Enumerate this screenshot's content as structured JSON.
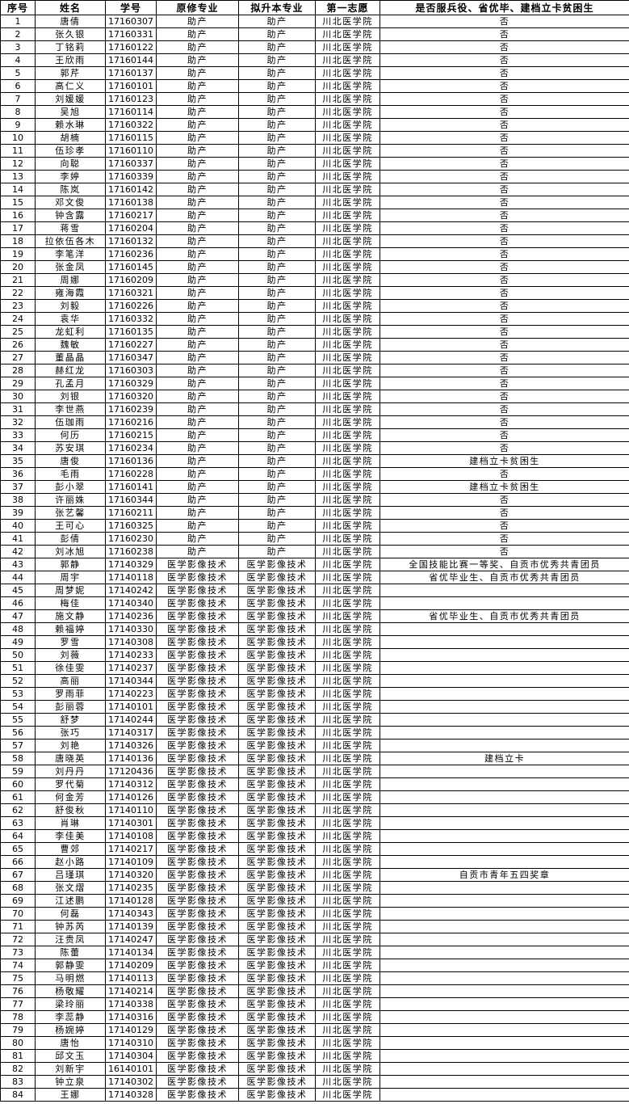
{
  "colors": {
    "border": "#000000",
    "text": "#000000",
    "background": "#ffffff"
  },
  "table": {
    "headers": [
      "序号",
      "姓名",
      "学号",
      "原修专业",
      "拟升本专业",
      "第一志愿",
      "是否服兵役、省优毕、建档立卡贫困生"
    ],
    "rows": [
      [
        "1",
        "唐倩",
        "17160307",
        "助产",
        "助产",
        "川北医学院",
        "否"
      ],
      [
        "2",
        "张久银",
        "17160331",
        "助产",
        "助产",
        "川北医学院",
        "否"
      ],
      [
        "3",
        "丁铭莉",
        "17160122",
        "助产",
        "助产",
        "川北医学院",
        "否"
      ],
      [
        "4",
        "王欣雨",
        "17160144",
        "助产",
        "助产",
        "川北医学院",
        "否"
      ],
      [
        "5",
        "郭芹",
        "17160137",
        "助产",
        "助产",
        "川北医学院",
        "否"
      ],
      [
        "6",
        "高仁义",
        "17160101",
        "助产",
        "助产",
        "川北医学院",
        "否"
      ],
      [
        "7",
        "刘媛媛",
        "17160123",
        "助产",
        "助产",
        "川北医学院",
        "否"
      ],
      [
        "8",
        "吴旭",
        "17160114",
        "助产",
        "助产",
        "川北医学院",
        "否"
      ],
      [
        "9",
        "赖水琳",
        "17160322",
        "助产",
        "助产",
        "川北医学院",
        "否"
      ],
      [
        "10",
        "胡楠",
        "17160115",
        "助产",
        "助产",
        "川北医学院",
        "否"
      ],
      [
        "11",
        "伍珍孝",
        "17160110",
        "助产",
        "助产",
        "川北医学院",
        "否"
      ],
      [
        "12",
        "向聪",
        "17160337",
        "助产",
        "助产",
        "川北医学院",
        "否"
      ],
      [
        "13",
        "李婷",
        "17160339",
        "助产",
        "助产",
        "川北医学院",
        "否"
      ],
      [
        "14",
        "陈岚",
        "17160142",
        "助产",
        "助产",
        "川北医学院",
        "否"
      ],
      [
        "15",
        "邓文俊",
        "17160138",
        "助产",
        "助产",
        "川北医学院",
        "否"
      ],
      [
        "16",
        "钟含露",
        "17160217",
        "助产",
        "助产",
        "川北医学院",
        "否"
      ],
      [
        "17",
        "蒋雪",
        "17160204",
        "助产",
        "助产",
        "川北医学院",
        "否"
      ],
      [
        "18",
        "拉依伍各木",
        "17160132",
        "助产",
        "助产",
        "川北医学院",
        "否"
      ],
      [
        "19",
        "李笔洋",
        "17160236",
        "助产",
        "助产",
        "川北医学院",
        "否"
      ],
      [
        "20",
        "张金凤",
        "17160145",
        "助产",
        "助产",
        "川北医学院",
        "否"
      ],
      [
        "21",
        "周娜",
        "17160209",
        "助产",
        "助产",
        "川北医学院",
        "否"
      ],
      [
        "22",
        "雍海霞",
        "17160321",
        "助产",
        "助产",
        "川北医学院",
        "否"
      ],
      [
        "23",
        "刘毅",
        "17160226",
        "助产",
        "助产",
        "川北医学院",
        "否"
      ],
      [
        "24",
        "袁华",
        "17160332",
        "助产",
        "助产",
        "川北医学院",
        "否"
      ],
      [
        "25",
        "龙虹利",
        "17160135",
        "助产",
        "助产",
        "川北医学院",
        "否"
      ],
      [
        "26",
        "魏敏",
        "17160227",
        "助产",
        "助产",
        "川北医学院",
        "否"
      ],
      [
        "27",
        "董晶晶",
        "17160347",
        "助产",
        "助产",
        "川北医学院",
        "否"
      ],
      [
        "28",
        "赫红龙",
        "17160303",
        "助产",
        "助产",
        "川北医学院",
        "否"
      ],
      [
        "29",
        "孔孟月",
        "17160329",
        "助产",
        "助产",
        "川北医学院",
        "否"
      ],
      [
        "30",
        "刘银",
        "17160320",
        "助产",
        "助产",
        "川北医学院",
        "否"
      ],
      [
        "31",
        "李世燕",
        "17160239",
        "助产",
        "助产",
        "川北医学院",
        "否"
      ],
      [
        "32",
        "伍珈雨",
        "17160216",
        "助产",
        "助产",
        "川北医学院",
        "否"
      ],
      [
        "33",
        "何历",
        "17160215",
        "助产",
        "助产",
        "川北医学院",
        "否"
      ],
      [
        "34",
        "苏安琪",
        "17160234",
        "助产",
        "助产",
        "川北医学院",
        "否"
      ],
      [
        "35",
        "唐俊",
        "17160136",
        "助产",
        "助产",
        "川北医学院",
        "建档立卡贫困生"
      ],
      [
        "36",
        "毛雨",
        "17160228",
        "助产",
        "助产",
        "川北医学院",
        "否"
      ],
      [
        "37",
        "彭小翠",
        "17160141",
        "助产",
        "助产",
        "川北医学院",
        "建档立卡贫困生"
      ],
      [
        "38",
        "许丽姝",
        "17160344",
        "助产",
        "助产",
        "川北医学院",
        "否"
      ],
      [
        "39",
        "张艺馨",
        "17160211",
        "助产",
        "助产",
        "川北医学院",
        "否"
      ],
      [
        "40",
        "王可心",
        "17160325",
        "助产",
        "助产",
        "川北医学院",
        "否"
      ],
      [
        "41",
        "彭倩",
        "17160230",
        "助产",
        "助产",
        "川北医学院",
        "否"
      ],
      [
        "42",
        "刘冰旭",
        "17160238",
        "助产",
        "助产",
        "川北医学院",
        "否"
      ],
      [
        "43",
        "郭静",
        "17140329",
        "医学影像技术",
        "医学影像技术",
        "川北医学院",
        "全国技能比赛一等奖、自贡市优秀共青团员"
      ],
      [
        "44",
        "周宇",
        "17140118",
        "医学影像技术",
        "医学影像技术",
        "川北医学院",
        "省优毕业生、自贡市优秀共青团员"
      ],
      [
        "45",
        "周梦妮",
        "17140242",
        "医学影像技术",
        "医学影像技术",
        "川北医学院",
        ""
      ],
      [
        "46",
        "梅佳",
        "17140340",
        "医学影像技术",
        "医学影像技术",
        "川北医学院",
        ""
      ],
      [
        "47",
        "施文静",
        "17140236",
        "医学影像技术",
        "医学影像技术",
        "川北医学院",
        "省优毕业生、自贡市优秀共青团员"
      ],
      [
        "48",
        "赖福婷",
        "17140330",
        "医学影像技术",
        "医学影像技术",
        "川北医学院",
        ""
      ],
      [
        "49",
        "罗雪",
        "17140308",
        "医学影像技术",
        "医学影像技术",
        "川北医学院",
        ""
      ],
      [
        "50",
        "刘薇",
        "17140233",
        "医学影像技术",
        "医学影像技术",
        "川北医学院",
        ""
      ],
      [
        "51",
        "徐佳雯",
        "17140237",
        "医学影像技术",
        "医学影像技术",
        "川北医学院",
        ""
      ],
      [
        "52",
        "高丽",
        "17140344",
        "医学影像技术",
        "医学影像技术",
        "川北医学院",
        ""
      ],
      [
        "53",
        "罗雨菲",
        "17140223",
        "医学影像技术",
        "医学影像技术",
        "川北医学院",
        ""
      ],
      [
        "54",
        "彭丽蓉",
        "17140101",
        "医学影像技术",
        "医学影像技术",
        "川北医学院",
        ""
      ],
      [
        "55",
        "舒梦",
        "17140244",
        "医学影像技术",
        "医学影像技术",
        "川北医学院",
        ""
      ],
      [
        "56",
        "张巧",
        "17140317",
        "医学影像技术",
        "医学影像技术",
        "川北医学院",
        ""
      ],
      [
        "57",
        "刘艳",
        "17140326",
        "医学影像技术",
        "医学影像技术",
        "川北医学院",
        ""
      ],
      [
        "58",
        "唐晓英",
        "17140136",
        "医学影像技术",
        "医学影像技术",
        "川北医学院",
        "建档立卡"
      ],
      [
        "59",
        "刘丹丹",
        "17120436",
        "医学影像技术",
        "医学影像技术",
        "川北医学院",
        ""
      ],
      [
        "60",
        "罗代菊",
        "17140312",
        "医学影像技术",
        "医学影像技术",
        "川北医学院",
        ""
      ],
      [
        "61",
        "何金芳",
        "17140126",
        "医学影像技术",
        "医学影像技术",
        "川北医学院",
        ""
      ],
      [
        "62",
        "舒俊秋",
        "17140110",
        "医学影像技术",
        "医学影像技术",
        "川北医学院",
        ""
      ],
      [
        "63",
        "肖琳",
        "17140301",
        "医学影像技术",
        "医学影像技术",
        "川北医学院",
        ""
      ],
      [
        "64",
        "李佳美",
        "17140108",
        "医学影像技术",
        "医学影像技术",
        "川北医学院",
        ""
      ],
      [
        "65",
        "曹郊",
        "17140217",
        "医学影像技术",
        "医学影像技术",
        "川北医学院",
        ""
      ],
      [
        "66",
        "赵小路",
        "17140109",
        "医学影像技术",
        "医学影像技术",
        "川北医学院",
        ""
      ],
      [
        "67",
        "吕瑾琪",
        "17140320",
        "医学影像技术",
        "医学影像技术",
        "川北医学院",
        "自贡市青年五四奖章"
      ],
      [
        "68",
        "张文熠",
        "17140235",
        "医学影像技术",
        "医学影像技术",
        "川北医学院",
        ""
      ],
      [
        "69",
        "江述鹏",
        "17140128",
        "医学影像技术",
        "医学影像技术",
        "川北医学院",
        ""
      ],
      [
        "70",
        "何磊",
        "17140343",
        "医学影像技术",
        "医学影像技术",
        "川北医学院",
        ""
      ],
      [
        "71",
        "钟苏芮",
        "17140139",
        "医学影像技术",
        "医学影像技术",
        "川北医学院",
        ""
      ],
      [
        "72",
        "汪贵凤",
        "17140247",
        "医学影像技术",
        "医学影像技术",
        "川北医学院",
        ""
      ],
      [
        "73",
        "陈蕾",
        "17140134",
        "医学影像技术",
        "医学影像技术",
        "川北医学院",
        ""
      ],
      [
        "74",
        "郭静雯",
        "17140209",
        "医学影像技术",
        "医学影像技术",
        "川北医学院",
        ""
      ],
      [
        "75",
        "马明燃",
        "17140113",
        "医学影像技术",
        "医学影像技术",
        "川北医学院",
        ""
      ],
      [
        "76",
        "杨敬耀",
        "17140214",
        "医学影像技术",
        "医学影像技术",
        "川北医学院",
        ""
      ],
      [
        "77",
        "梁玲丽",
        "17140338",
        "医学影像技术",
        "医学影像技术",
        "川北医学院",
        ""
      ],
      [
        "78",
        "李蕊静",
        "17140316",
        "医学影像技术",
        "医学影像技术",
        "川北医学院",
        ""
      ],
      [
        "79",
        "杨婉婷",
        "17140129",
        "医学影像技术",
        "医学影像技术",
        "川北医学院",
        ""
      ],
      [
        "80",
        "唐怡",
        "17140310",
        "医学影像技术",
        "医学影像技术",
        "川北医学院",
        ""
      ],
      [
        "81",
        "邱文玉",
        "17140304",
        "医学影像技术",
        "医学影像技术",
        "川北医学院",
        ""
      ],
      [
        "82",
        "刘新宇",
        "16140101",
        "医学影像技术",
        "医学影像技术",
        "川北医学院",
        ""
      ],
      [
        "83",
        "钟立泉",
        "17140302",
        "医学影像技术",
        "医学影像技术",
        "川北医学院",
        ""
      ],
      [
        "84",
        "王娜",
        "17140328",
        "医学影像技术",
        "医学影像技术",
        "川北医学院",
        ""
      ]
    ]
  }
}
